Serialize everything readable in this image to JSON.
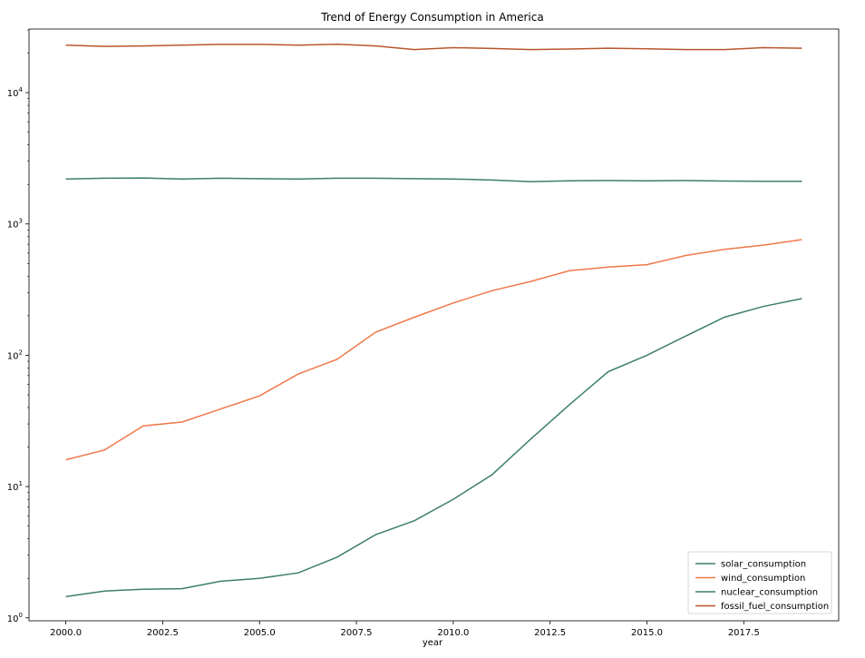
{
  "chart_data": {
    "type": "line",
    "title": "Trend of Energy Consumption in America",
    "xlabel": "year",
    "ylabel": "",
    "yscale": "log",
    "xlim": [
      1999.05,
      2019.95
    ],
    "ylim": [
      0.95,
      30500
    ],
    "x_ticks": [
      2000.0,
      2002.5,
      2005.0,
      2007.5,
      2010.0,
      2012.5,
      2015.0,
      2017.5
    ],
    "x_tick_labels": [
      "2000.0",
      "2002.5",
      "2005.0",
      "2007.5",
      "2010.0",
      "2012.5",
      "2015.0",
      "2017.5"
    ],
    "y_ticks": [
      1,
      10,
      100,
      1000,
      10000
    ],
    "y_tick_labels": [
      [
        "10",
        "0"
      ],
      [
        "10",
        "1"
      ],
      [
        "10",
        "2"
      ],
      [
        "10",
        "3"
      ],
      [
        "10",
        "4"
      ]
    ],
    "grid": false,
    "legend_position": "lower-right",
    "x": [
      2000,
      2001,
      2002,
      2003,
      2004,
      2005,
      2006,
      2007,
      2008,
      2009,
      2010,
      2011,
      2012,
      2013,
      2014,
      2015,
      2016,
      2017,
      2018,
      2019
    ],
    "series": [
      {
        "name": "solar_consumption",
        "color": "#3d7f68",
        "values": [
          1.45,
          1.6,
          1.65,
          1.67,
          1.9,
          2.0,
          2.2,
          2.9,
          4.3,
          5.5,
          8.0,
          12.3,
          23,
          42,
          75,
          100,
          140,
          195,
          235,
          270
        ]
      },
      {
        "name": "wind_consumption",
        "color": "#f0784a",
        "values": [
          16,
          19,
          29,
          31,
          39,
          49,
          72,
          93,
          150,
          195,
          250,
          310,
          365,
          440,
          470,
          490,
          575,
          640,
          690,
          760
        ]
      },
      {
        "name": "nuclear_consumption",
        "color": "#3d7f68",
        "values": [
          2200,
          2230,
          2240,
          2200,
          2230,
          2210,
          2200,
          2230,
          2230,
          2210,
          2200,
          2160,
          2100,
          2130,
          2140,
          2130,
          2140,
          2120,
          2110,
          2110
        ]
      },
      {
        "name": "fossil_fuel_consumption",
        "color": "#b9562c",
        "values": [
          23000,
          22500,
          22700,
          23000,
          23300,
          23300,
          23000,
          23400,
          22700,
          21300,
          22000,
          21700,
          21300,
          21500,
          21800,
          21600,
          21300,
          21300,
          22000,
          21800
        ]
      }
    ]
  }
}
